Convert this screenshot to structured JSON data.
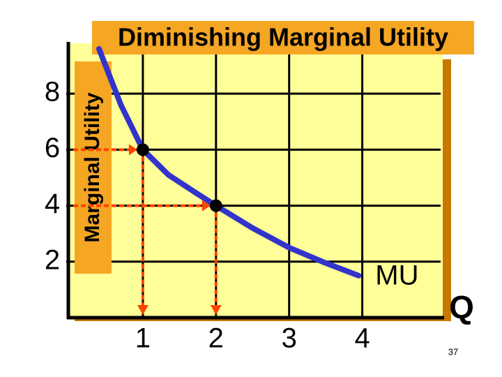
{
  "chart_data": {
    "type": "line",
    "title": "Diminishing Marginal Utility",
    "y_label": "Marginal Utility",
    "x_label": "Q",
    "series": [
      {
        "name": "MU",
        "color": "#3333cc",
        "x": [
          0.4,
          0.7,
          1,
          1.35,
          1.7,
          2,
          2.5,
          3,
          3.5,
          3.95
        ],
        "values": [
          9.6,
          7.6,
          6,
          5.1,
          4.5,
          4,
          3.2,
          2.5,
          1.95,
          1.5
        ]
      }
    ],
    "points": {
      "x": [
        1,
        2
      ],
      "values": [
        6,
        4
      ],
      "color": "#000000",
      "guide_color": "#ff4400"
    },
    "xlim": [
      0,
      5.1
    ],
    "ylim": [
      0,
      9.8
    ],
    "xticks": [
      1,
      2,
      3,
      4
    ],
    "yticks": [
      2,
      4,
      6,
      8
    ],
    "grid": true,
    "page_number": "37"
  }
}
